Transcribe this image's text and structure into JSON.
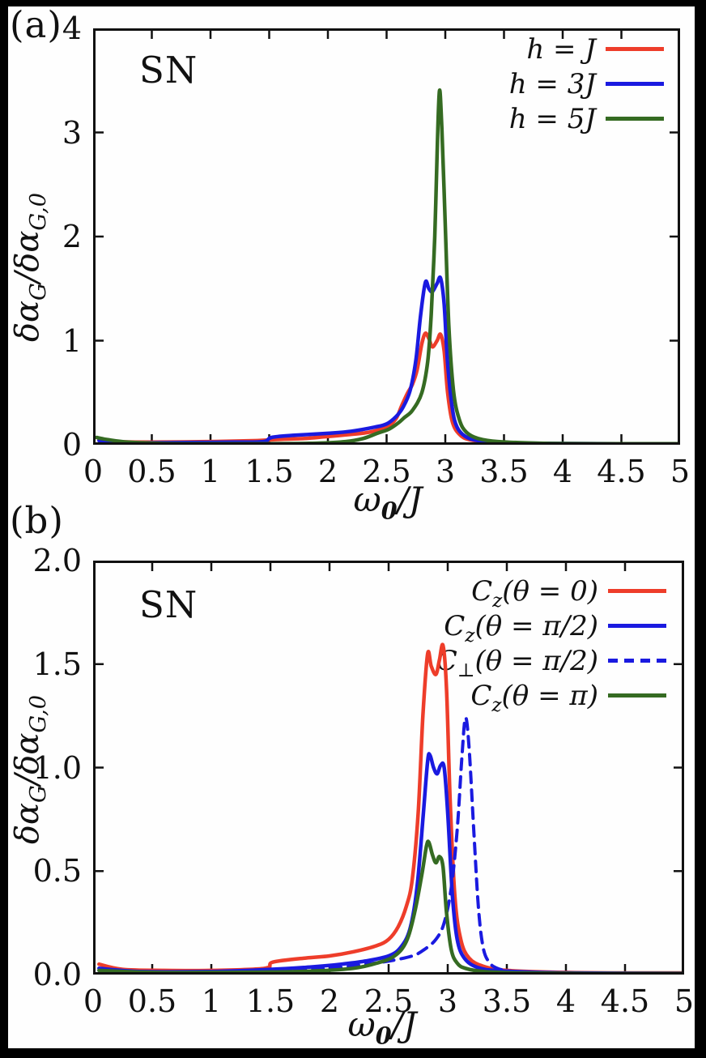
{
  "figure": {
    "background": "#000000",
    "sheet_color": "#fefefe",
    "axis_color": "#111111"
  },
  "panel_tags": {
    "a": "(a)",
    "b": "(b)"
  },
  "chart_data": [
    {
      "type": "line",
      "panel": "a",
      "inset_label": "SN",
      "xlabel": "ω_{0}/𝒥",
      "ylabel": "δα_{G}/δα_{G,0}",
      "xlim": [
        0,
        5
      ],
      "ylim": [
        0,
        4
      ],
      "x_ticks": [
        0,
        0.5,
        1,
        1.5,
        2,
        2.5,
        3,
        3.5,
        4,
        4.5,
        5
      ],
      "x_tick_labels": [
        "0",
        "0.5",
        "1",
        "1.5",
        "2",
        "2.5",
        "3",
        "3.5",
        "4",
        "4.5",
        "5"
      ],
      "y_ticks": [
        0,
        1,
        2,
        3,
        4
      ],
      "y_tick_labels": [
        "0",
        "1",
        "2",
        "3",
        "4"
      ],
      "grid": false,
      "legend_position": "top-right",
      "series": [
        {
          "name": "h = 𝒥",
          "color": "#ee3d2a",
          "dash": false,
          "peak_summary": "double peak ~1.07 at ω0/J ≈ 2.83 and 2.96, shoulder ~0.55 near 2.7",
          "points": [
            [
              0.05,
              0.05
            ],
            [
              0.2,
              0.03
            ],
            [
              0.5,
              0.025
            ],
            [
              1.0,
              0.03
            ],
            [
              1.4,
              0.04
            ],
            [
              1.55,
              0.05
            ],
            [
              1.8,
              0.06
            ],
            [
              2.0,
              0.08
            ],
            [
              2.2,
              0.1
            ],
            [
              2.35,
              0.12
            ],
            [
              2.5,
              0.17
            ],
            [
              2.58,
              0.25
            ],
            [
              2.63,
              0.38
            ],
            [
              2.68,
              0.5
            ],
            [
              2.72,
              0.58
            ],
            [
              2.76,
              0.72
            ],
            [
              2.8,
              0.97
            ],
            [
              2.83,
              1.07
            ],
            [
              2.86,
              1.02
            ],
            [
              2.89,
              0.94
            ],
            [
              2.93,
              1.0
            ],
            [
              2.96,
              1.06
            ],
            [
              2.99,
              0.9
            ],
            [
              3.02,
              0.5
            ],
            [
              3.06,
              0.22
            ],
            [
              3.12,
              0.1
            ],
            [
              3.2,
              0.05
            ],
            [
              3.35,
              0.03
            ],
            [
              3.6,
              0.015
            ],
            [
              4.0,
              0.01
            ],
            [
              4.5,
              0.008
            ],
            [
              5.0,
              0.008
            ]
          ]
        },
        {
          "name": "h = 3𝒥",
          "color": "#1a1ae0",
          "dash": false,
          "peak_summary": "double peak ~1.56/1.60 at ω0/J ≈ 2.83 and 2.96, step up at ω0/J ≈ 1.5",
          "points": [
            [
              0.05,
              0.04
            ],
            [
              0.3,
              0.02
            ],
            [
              0.7,
              0.02
            ],
            [
              1.2,
              0.025
            ],
            [
              1.45,
              0.03
            ],
            [
              1.52,
              0.07
            ],
            [
              1.7,
              0.09
            ],
            [
              2.0,
              0.11
            ],
            [
              2.2,
              0.13
            ],
            [
              2.4,
              0.17
            ],
            [
              2.5,
              0.2
            ],
            [
              2.58,
              0.27
            ],
            [
              2.64,
              0.36
            ],
            [
              2.7,
              0.52
            ],
            [
              2.75,
              0.82
            ],
            [
              2.79,
              1.25
            ],
            [
              2.83,
              1.56
            ],
            [
              2.86,
              1.5
            ],
            [
              2.89,
              1.47
            ],
            [
              2.93,
              1.55
            ],
            [
              2.96,
              1.6
            ],
            [
              2.99,
              1.35
            ],
            [
              3.02,
              0.78
            ],
            [
              3.06,
              0.35
            ],
            [
              3.1,
              0.17
            ],
            [
              3.17,
              0.08
            ],
            [
              3.28,
              0.04
            ],
            [
              3.5,
              0.02
            ],
            [
              4.0,
              0.012
            ],
            [
              4.5,
              0.01
            ],
            [
              5.0,
              0.01
            ]
          ]
        },
        {
          "name": "h = 5𝒥",
          "color": "#356b22",
          "dash": false,
          "peak_summary": "single sharp peak ~3.40 at ω0/J ≈ 2.95",
          "points": [
            [
              0.03,
              0.07
            ],
            [
              0.12,
              0.05
            ],
            [
              0.3,
              0.025
            ],
            [
              0.6,
              0.012
            ],
            [
              1.0,
              0.01
            ],
            [
              1.5,
              0.01
            ],
            [
              1.9,
              0.015
            ],
            [
              2.15,
              0.03
            ],
            [
              2.3,
              0.06
            ],
            [
              2.42,
              0.11
            ],
            [
              2.52,
              0.15
            ],
            [
              2.6,
              0.21
            ],
            [
              2.65,
              0.26
            ],
            [
              2.72,
              0.33
            ],
            [
              2.8,
              0.5
            ],
            [
              2.85,
              0.8
            ],
            [
              2.88,
              1.25
            ],
            [
              2.91,
              2.0
            ],
            [
              2.93,
              2.8
            ],
            [
              2.95,
              3.4
            ],
            [
              2.97,
              3.05
            ],
            [
              3.0,
              2.1
            ],
            [
              3.03,
              1.15
            ],
            [
              3.07,
              0.52
            ],
            [
              3.12,
              0.24
            ],
            [
              3.18,
              0.12
            ],
            [
              3.28,
              0.06
            ],
            [
              3.45,
              0.03
            ],
            [
              3.8,
              0.015
            ],
            [
              4.3,
              0.01
            ],
            [
              5.0,
              0.01
            ]
          ]
        }
      ]
    },
    {
      "type": "line",
      "panel": "b",
      "inset_label": "SN",
      "xlabel": "ω_{0}/𝒥",
      "ylabel": "δα_{G}/δα_{G,0}",
      "xlim": [
        0,
        5
      ],
      "ylim": [
        0,
        2
      ],
      "x_ticks": [
        0,
        0.5,
        1,
        1.5,
        2,
        2.5,
        3,
        3.5,
        4,
        4.5,
        5
      ],
      "x_tick_labels": [
        "0",
        "0.5",
        "1",
        "1.5",
        "2",
        "2.5",
        "3",
        "3.5",
        "4",
        "4.5",
        "5"
      ],
      "y_ticks": [
        0,
        0.5,
        1,
        1.5,
        2
      ],
      "y_tick_labels": [
        "0.0",
        "0.5",
        "1.0",
        "1.5",
        "2.0"
      ],
      "grid": false,
      "legend_position": "top-right",
      "series": [
        {
          "name": "C_{z}(θ = 0)",
          "color": "#ee3d2a",
          "dash": false,
          "peak_summary": "double peak ~1.55/1.59 at ω0/J ≈ 2.83 and 2.96",
          "points": [
            [
              0.05,
              0.05
            ],
            [
              0.25,
              0.025
            ],
            [
              0.6,
              0.02
            ],
            [
              1.0,
              0.02
            ],
            [
              1.45,
              0.03
            ],
            [
              1.52,
              0.06
            ],
            [
              1.8,
              0.08
            ],
            [
              2.0,
              0.09
            ],
            [
              2.2,
              0.11
            ],
            [
              2.4,
              0.14
            ],
            [
              2.5,
              0.17
            ],
            [
              2.58,
              0.23
            ],
            [
              2.65,
              0.33
            ],
            [
              2.7,
              0.46
            ],
            [
              2.75,
              0.78
            ],
            [
              2.79,
              1.25
            ],
            [
              2.83,
              1.55
            ],
            [
              2.86,
              1.49
            ],
            [
              2.9,
              1.45
            ],
            [
              2.93,
              1.52
            ],
            [
              2.96,
              1.59
            ],
            [
              2.99,
              1.38
            ],
            [
              3.02,
              0.85
            ],
            [
              3.06,
              0.38
            ],
            [
              3.11,
              0.17
            ],
            [
              3.18,
              0.08
            ],
            [
              3.3,
              0.04
            ],
            [
              3.5,
              0.02
            ],
            [
              4.0,
              0.01
            ],
            [
              4.5,
              0.008
            ],
            [
              5.0,
              0.008
            ]
          ]
        },
        {
          "name": "C_{z}(θ = π/2)",
          "color": "#1a1ae0",
          "dash": false,
          "peak_summary": "double peak ~1.06/1.01 at ω0/J ≈ 2.85 and 2.95",
          "points": [
            [
              0.05,
              0.03
            ],
            [
              0.4,
              0.015
            ],
            [
              1.0,
              0.015
            ],
            [
              1.5,
              0.025
            ],
            [
              1.8,
              0.035
            ],
            [
              2.1,
              0.05
            ],
            [
              2.3,
              0.065
            ],
            [
              2.5,
              0.09
            ],
            [
              2.6,
              0.13
            ],
            [
              2.68,
              0.22
            ],
            [
              2.74,
              0.42
            ],
            [
              2.79,
              0.75
            ],
            [
              2.83,
              1.03
            ],
            [
              2.85,
              1.06
            ],
            [
              2.88,
              1.0
            ],
            [
              2.91,
              0.97
            ],
            [
              2.94,
              1.01
            ],
            [
              2.97,
              1.0
            ],
            [
              3.0,
              0.78
            ],
            [
              3.04,
              0.38
            ],
            [
              3.08,
              0.17
            ],
            [
              3.14,
              0.08
            ],
            [
              3.25,
              0.035
            ],
            [
              3.45,
              0.018
            ],
            [
              4.0,
              0.008
            ],
            [
              5.0,
              0.006
            ]
          ]
        },
        {
          "name": "C_{⊥}(θ = π/2)",
          "color": "#1a1ae0",
          "dash": true,
          "peak_summary": "narrow peak ~1.24 at ω0/J ≈ 3.15",
          "points": [
            [
              0.05,
              0.02
            ],
            [
              0.5,
              0.012
            ],
            [
              1.0,
              0.012
            ],
            [
              1.5,
              0.018
            ],
            [
              2.0,
              0.03
            ],
            [
              2.3,
              0.05
            ],
            [
              2.5,
              0.065
            ],
            [
              2.7,
              0.09
            ],
            [
              2.8,
              0.12
            ],
            [
              2.9,
              0.17
            ],
            [
              2.97,
              0.25
            ],
            [
              3.03,
              0.42
            ],
            [
              3.08,
              0.7
            ],
            [
              3.12,
              1.05
            ],
            [
              3.15,
              1.24
            ],
            [
              3.18,
              1.1
            ],
            [
              3.22,
              0.7
            ],
            [
              3.26,
              0.32
            ],
            [
              3.3,
              0.13
            ],
            [
              3.35,
              0.06
            ],
            [
              3.42,
              0.03
            ],
            [
              3.55,
              0.015
            ],
            [
              3.8,
              0.008
            ],
            [
              4.4,
              0.005
            ],
            [
              5.0,
              0.005
            ]
          ]
        },
        {
          "name": "C_{z}(θ = π)",
          "color": "#356b22",
          "dash": false,
          "peak_summary": "peak ~0.64 at ω0/J ≈ 2.84 with shoulder ~0.57 near 2.93",
          "points": [
            [
              0.05,
              0.02
            ],
            [
              0.5,
              0.01
            ],
            [
              1.0,
              0.01
            ],
            [
              1.5,
              0.012
            ],
            [
              1.9,
              0.018
            ],
            [
              2.2,
              0.03
            ],
            [
              2.4,
              0.055
            ],
            [
              2.55,
              0.09
            ],
            [
              2.65,
              0.16
            ],
            [
              2.72,
              0.3
            ],
            [
              2.78,
              0.48
            ],
            [
              2.82,
              0.62
            ],
            [
              2.84,
              0.64
            ],
            [
              2.87,
              0.58
            ],
            [
              2.9,
              0.54
            ],
            [
              2.93,
              0.57
            ],
            [
              2.96,
              0.52
            ],
            [
              2.99,
              0.3
            ],
            [
              3.03,
              0.12
            ],
            [
              3.08,
              0.055
            ],
            [
              3.15,
              0.03
            ],
            [
              3.3,
              0.015
            ],
            [
              3.6,
              0.008
            ],
            [
              4.2,
              0.005
            ],
            [
              5.0,
              0.005
            ]
          ]
        }
      ]
    }
  ]
}
